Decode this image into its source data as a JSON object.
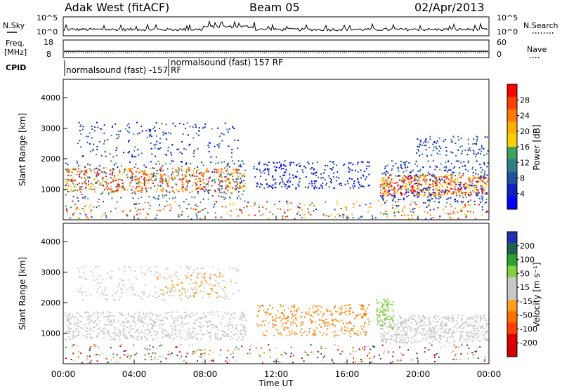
{
  "header": {
    "station": "Adak West (fitACF)",
    "beam": "Beam 05",
    "date": "02/Apr/2013"
  },
  "side_labels": {
    "nsky": "N.Sky",
    "nsearch": "N.Search",
    "freq_line1": "Freq.",
    "freq_line2": "[MHz]",
    "nave": "Nave",
    "cpid": "CPID"
  },
  "cpid_labels": {
    "first": "normalsound (fast) -157 RF",
    "second": "normalsound (fast) 157 RF"
  },
  "chart_data": [
    {
      "type": "line",
      "name": "noise",
      "left_ticks": [
        "10^5",
        "10^0"
      ],
      "right_ticks": [
        "10^5",
        "10^0"
      ]
    },
    {
      "type": "line",
      "name": "frequency",
      "left_ticks": [
        "18",
        "8"
      ],
      "right_ticks": [
        "60",
        "0"
      ]
    },
    {
      "type": "heatmap",
      "name": "power",
      "xlabel": "Time UT",
      "ylabel": "Slant Range [km]",
      "ylim": [
        0,
        4600
      ],
      "yticks": [
        "1000",
        "2000",
        "3000",
        "4000"
      ],
      "colorbar_label": "Power [dB]",
      "colorbar_ticks": [
        "28",
        "24",
        "20",
        "16",
        "12",
        "8",
        "4"
      ],
      "colorbar_colors": [
        "#ff0000",
        "#ff4000",
        "#ff7a00",
        "#ffb000",
        "#ffd000",
        "#40a060",
        "#2f8080",
        "#2050a0",
        "#1020c0",
        "#0000ff"
      ]
    },
    {
      "type": "heatmap",
      "name": "velocity",
      "xlabel": "Time UT",
      "ylabel": "Slant Range [km]",
      "ylim": [
        0,
        4600
      ],
      "yticks": [
        "1000",
        "2000",
        "3000",
        "4000"
      ],
      "colorbar_label": "Velocity [m s⁻¹]",
      "colorbar_ticks": [
        "200",
        "100",
        "50",
        "15",
        "-15",
        "-50",
        "-100",
        "-200"
      ],
      "colorbar_colors": [
        "#2030b0",
        "#206050",
        "#30a030",
        "#80d040",
        "#c8c8c8",
        "#c8c8c8",
        "#ffa020",
        "#ff7000",
        "#ff4000",
        "#e00000",
        "#d00000"
      ]
    }
  ],
  "x_axis": {
    "label": "Time UT",
    "ticks": [
      "00:00",
      "04:00",
      "08:00",
      "12:00",
      "16:00",
      "20:00",
      "00:00"
    ]
  },
  "colors": {
    "axis": "#000000",
    "grey_scatter": "#c0c0c0"
  }
}
